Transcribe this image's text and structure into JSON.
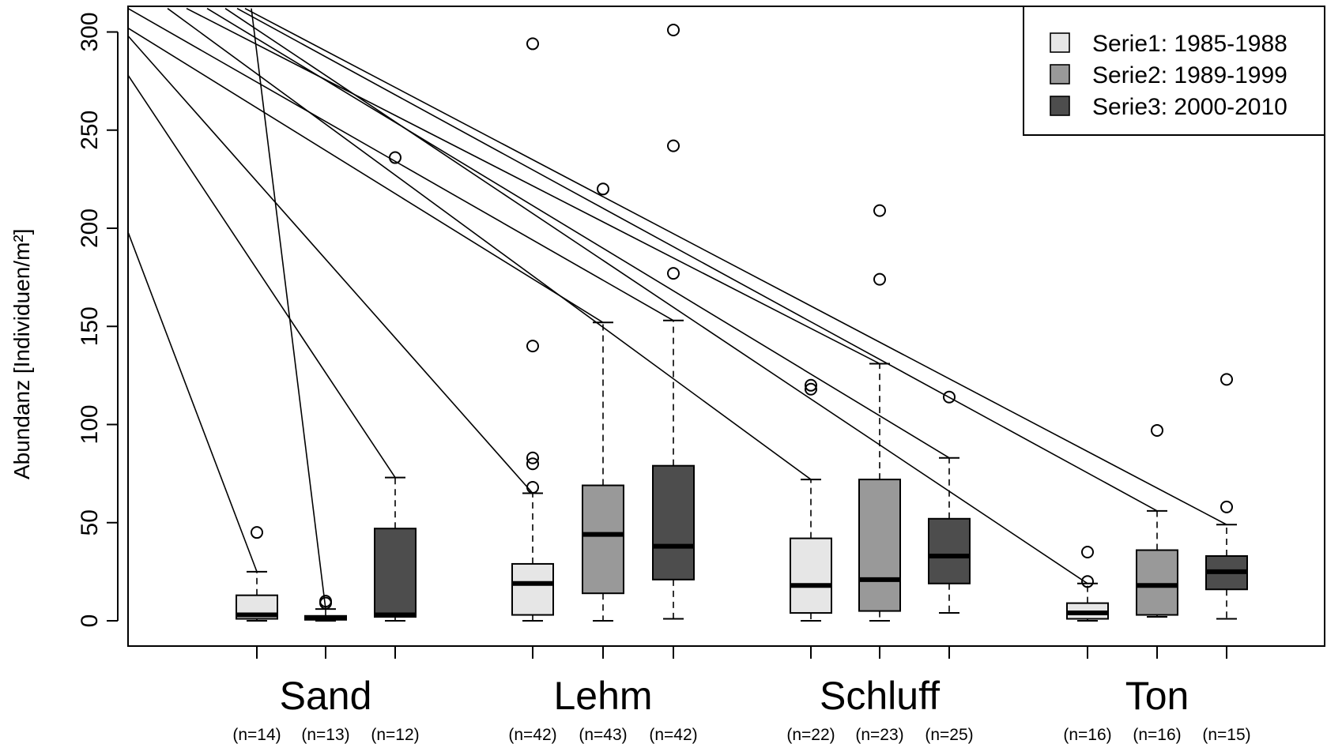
{
  "chart_data": {
    "type": "box",
    "ylabel": "Abundanz [Individuen/m²]",
    "ylim": [
      -12,
      313
    ],
    "yticks": [
      0,
      50,
      100,
      150,
      200,
      250,
      300
    ],
    "categories": [
      "Sand",
      "Lehm",
      "Schluff",
      "Ton"
    ],
    "series": [
      {
        "name": "Serie1: 1985-1988",
        "color": "#e6e6e6"
      },
      {
        "name": "Serie2: 1989-1999",
        "color": "#999999"
      },
      {
        "name": "Serie3: 2000-2010",
        "color": "#4d4d4d"
      }
    ],
    "legend_position": "top-right",
    "boxes": [
      {
        "category": "Sand",
        "series": 0,
        "n_label": "(n=14)",
        "lw": 0,
        "q1": 1,
        "median": 3,
        "q3": 13,
        "uw": 25,
        "outliers": [
          45
        ]
      },
      {
        "category": "Sand",
        "series": 1,
        "n_label": "(n=13)",
        "lw": 0,
        "q1": 0.5,
        "median": 1.5,
        "q3": 2.5,
        "uw": 6,
        "outliers": [
          9,
          10
        ]
      },
      {
        "category": "Sand",
        "series": 2,
        "n_label": "(n=12)",
        "lw": 0,
        "q1": 2,
        "median": 3,
        "q3": 47,
        "uw": 73,
        "outliers": [
          236
        ]
      },
      {
        "category": "Lehm",
        "series": 0,
        "n_label": "(n=42)",
        "lw": 0,
        "q1": 3,
        "median": 19,
        "q3": 29,
        "uw": 65,
        "outliers": [
          68,
          80,
          83,
          140,
          294
        ]
      },
      {
        "category": "Lehm",
        "series": 1,
        "n_label": "(n=43)",
        "lw": 0,
        "q1": 14,
        "median": 44,
        "q3": 69,
        "uw": 152,
        "outliers": [
          220
        ]
      },
      {
        "category": "Lehm",
        "series": 2,
        "n_label": "(n=42)",
        "lw": 1,
        "q1": 21,
        "median": 38,
        "q3": 79,
        "uw": 153,
        "outliers": [
          177,
          242,
          301
        ]
      },
      {
        "category": "Schluff",
        "series": 0,
        "n_label": "(n=22)",
        "lw": 0,
        "q1": 4,
        "median": 18,
        "q3": 42,
        "uw": 72,
        "outliers": [
          118,
          120
        ]
      },
      {
        "category": "Schluff",
        "series": 1,
        "n_label": "(n=23)",
        "lw": 0,
        "q1": 5,
        "median": 21,
        "q3": 72,
        "uw": 131,
        "outliers": [
          174,
          209
        ]
      },
      {
        "category": "Schluff",
        "series": 2,
        "n_label": "(n=25)",
        "lw": 4,
        "q1": 19,
        "median": 33,
        "q3": 52,
        "uw": 83,
        "outliers": [
          114
        ]
      },
      {
        "category": "Ton",
        "series": 0,
        "n_label": "(n=16)",
        "lw": 0,
        "q1": 1,
        "median": 4,
        "q3": 9,
        "uw": 19,
        "outliers": [
          20,
          35
        ]
      },
      {
        "category": "Ton",
        "series": 1,
        "n_label": "(n=16)",
        "lw": 2,
        "q1": 3,
        "median": 18,
        "q3": 36,
        "uw": 56,
        "outliers": [
          97
        ]
      },
      {
        "category": "Ton",
        "series": 2,
        "n_label": "(n=15)",
        "lw": 1,
        "q1": 16,
        "median": 25,
        "q3": 33,
        "uw": 49,
        "outliers": [
          58,
          123
        ]
      }
    ]
  }
}
